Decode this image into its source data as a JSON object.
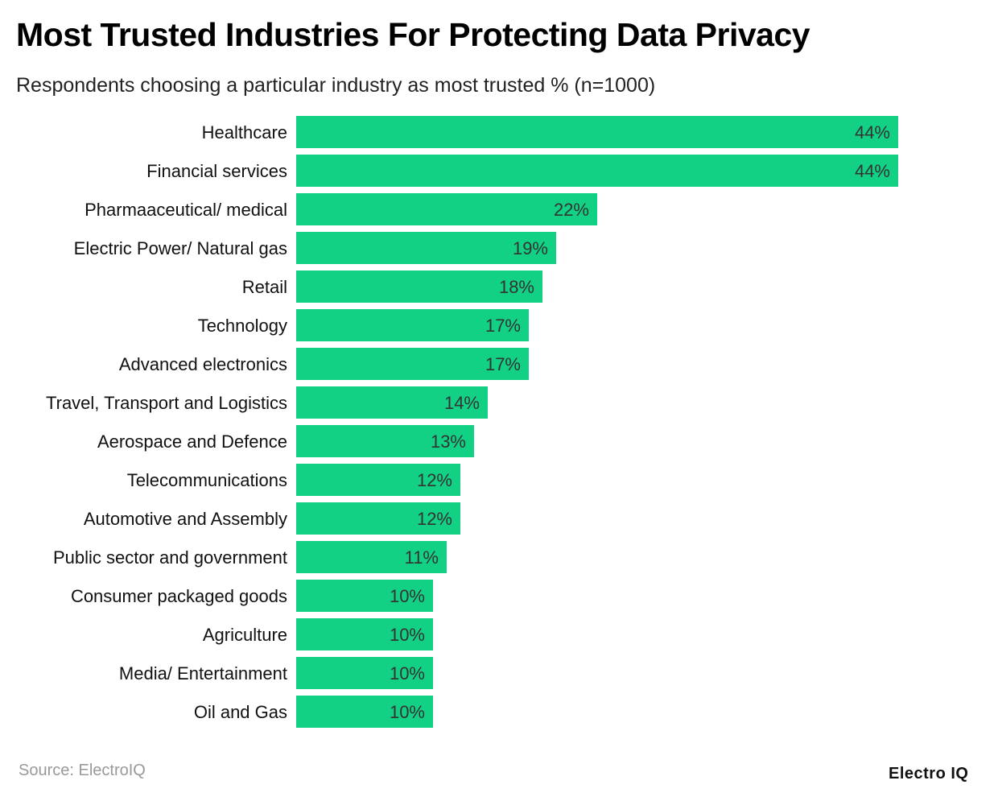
{
  "chart_data": {
    "type": "bar",
    "orientation": "horizontal",
    "title": "Most Trusted Industries For Protecting Data Privacy",
    "subtitle": "Respondents choosing a particular industry as most trusted % (n=1000)",
    "categories": [
      "Healthcare",
      "Financial services",
      "Pharmaaceutical/ medical",
      "Electric Power/ Natural gas",
      "Retail",
      "Technology",
      "Advanced electronics",
      "Travel, Transport and Logistics",
      "Aerospace and Defence",
      "Telecommunications",
      "Automotive and Assembly",
      "Public sector and government",
      "Consumer packaged goods",
      "Agriculture",
      "Media/ Entertainment",
      "Oil and Gas"
    ],
    "values": [
      44,
      44,
      22,
      19,
      18,
      17,
      17,
      14,
      13,
      12,
      12,
      11,
      10,
      10,
      10,
      10
    ],
    "value_suffix": "%",
    "bar_color": "#12d185",
    "grid": false,
    "xlabel": "",
    "ylabel": ""
  },
  "footer": {
    "source": "Source: ElectroIQ",
    "logo": "Electro IQ"
  }
}
